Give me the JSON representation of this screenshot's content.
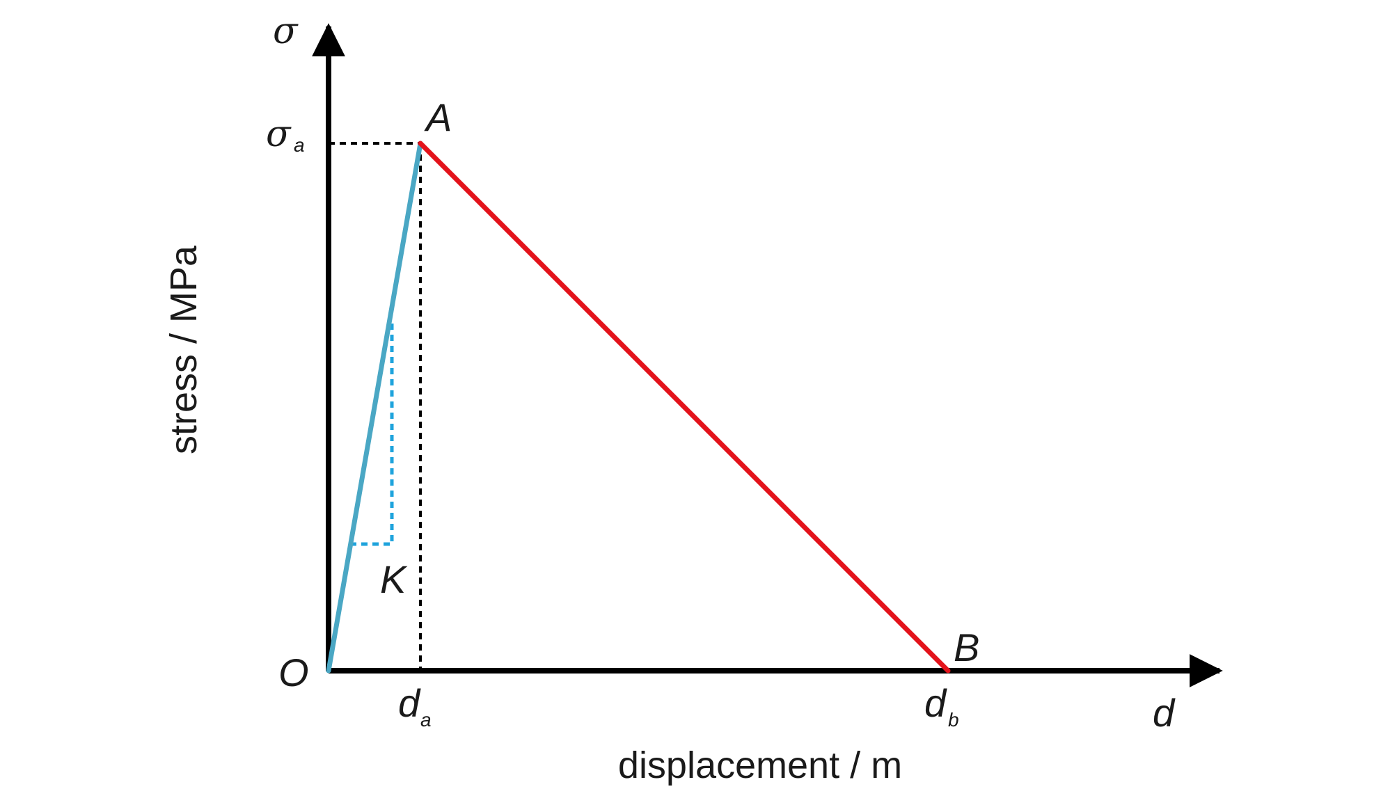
{
  "diagram": {
    "y_axis_symbol": "σ",
    "x_axis_symbol": "d",
    "y_axis_label": "stress / MPa",
    "x_axis_label": "displacement / m",
    "origin_label": "O",
    "peak_stress_label": {
      "base": "σ",
      "sub": "a"
    },
    "peak_disp_label": {
      "base": "d",
      "sub": "a"
    },
    "final_disp_label": {
      "base": "d",
      "sub": "b"
    },
    "point_a_label": "A",
    "point_b_label": "B",
    "stiffness_label": "K"
  },
  "chart_data": {
    "type": "line",
    "title": "",
    "xlabel": "displacement / m",
    "ylabel": "stress / MPa",
    "x_ticks": [
      "d_a",
      "d_b"
    ],
    "y_ticks": [
      "σ_a"
    ],
    "series": [
      {
        "segment": "O-A",
        "color": "#4aa7c4",
        "points": [
          {
            "x": 0,
            "y": 0,
            "label": "O"
          },
          {
            "x": 1,
            "y": 1,
            "label": "A"
          }
        ],
        "slope_label": "K"
      },
      {
        "segment": "A-B",
        "color": "#e3131b",
        "points": [
          {
            "x": 1,
            "y": 1,
            "label": "A"
          },
          {
            "x": 6.7,
            "y": 0,
            "label": "B"
          }
        ]
      }
    ],
    "grid": false,
    "guide_lines": "dashed black from A to both axes"
  },
  "colors": {
    "axis": "#000000",
    "elastic_line": "#4aa7c4",
    "softening_line": "#e3131b",
    "slope_triangle": "#1ea3dc",
    "guide": "#000000"
  }
}
